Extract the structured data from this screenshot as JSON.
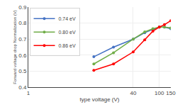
{
  "chart_data": {
    "type": "line",
    "xlabel": "type voltage (V)",
    "ylabel": "Forward voltage drop Normalization (V)",
    "log": "x",
    "xlim": [
      1,
      150
    ],
    "ylim": [
      0.4,
      0.9
    ],
    "xticks": [
      1,
      40,
      100,
      150
    ],
    "yticks": [
      0.4,
      0.5,
      0.6,
      0.7,
      0.8,
      0.9
    ],
    "grid": true,
    "legend": "upper left",
    "marker": "circle",
    "x": [
      10,
      20,
      40,
      60,
      80,
      100,
      120,
      150
    ],
    "series": [
      {
        "name": "0.74 eV",
        "color": "#4472c4",
        "values": [
          0.59,
          0.65,
          0.7,
          0.74,
          0.76,
          0.775,
          0.775,
          0.765
        ]
      },
      {
        "name": "0.80 eV",
        "color": "#70ad47",
        "values": [
          0.545,
          0.615,
          0.7,
          0.745,
          0.765,
          0.775,
          0.775,
          0.77
        ]
      },
      {
        "name": "0.86 eV",
        "color": "#ff0000",
        "values": [
          0.505,
          0.545,
          0.62,
          0.695,
          0.75,
          0.775,
          0.79,
          0.815
        ]
      }
    ]
  }
}
